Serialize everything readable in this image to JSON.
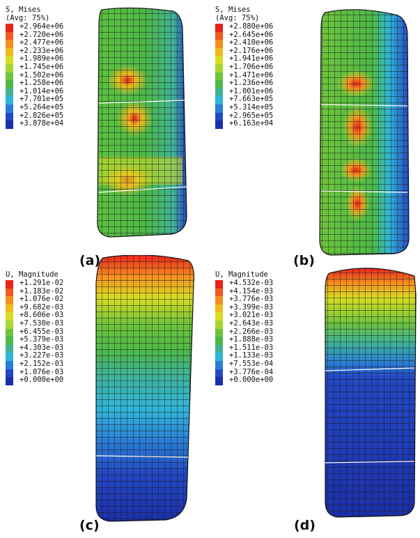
{
  "panels": [
    {
      "label": "(a)",
      "legend": {
        "title": "S, Mises",
        "subtitle": "(Avg: 75%)",
        "values": [
          "+2.964e+06",
          "+2.720e+06",
          "+2.477e+06",
          "+2.233e+06",
          "+1.989e+06",
          "+1.745e+06",
          "+1.502e+06",
          "+1.258e+06",
          "+1.014e+06",
          "+7.701e+05",
          "+5.264e+05",
          "+2.826e+05",
          "+3.878e+04"
        ]
      }
    },
    {
      "label": "(b)",
      "legend": {
        "title": "S, Mises",
        "subtitle": "(Avg: 75%)",
        "values": [
          "+2.880e+06",
          "+2.645e+06",
          "+2.410e+06",
          "+2.176e+06",
          "+1.941e+06",
          "+1.706e+06",
          "+1.471e+06",
          "+1.236e+06",
          "+1.001e+06",
          "+7.663e+05",
          "+5.314e+05",
          "+2.965e+05",
          "+6.163e+04"
        ]
      }
    },
    {
      "label": "(c)",
      "legend": {
        "title": "U, Magnitude",
        "subtitle": "",
        "values": [
          "+1.291e-02",
          "+1.183e-02",
          "+1.076e-02",
          "+9.682e-03",
          "+8.606e-03",
          "+7.530e-03",
          "+6.455e-03",
          "+5.379e-03",
          "+4.303e-03",
          "+3.227e-03",
          "+2.152e-03",
          "+1.076e-03",
          "+0.000e+00"
        ]
      }
    },
    {
      "label": "(d)",
      "legend": {
        "title": "U, Magnitude",
        "subtitle": "",
        "values": [
          "+4.532e-03",
          "+4.154e-03",
          "+3.776e-03",
          "+3.399e-03",
          "+3.021e-03",
          "+2.643e-03",
          "+2.266e-03",
          "+1.888e-03",
          "+1.511e-03",
          "+1.133e-03",
          "+7.553e-04",
          "+3.776e-04",
          "+0.000e+00"
        ]
      }
    }
  ],
  "colormap": [
    "#e8221c",
    "#f05a1e",
    "#f78f1f",
    "#eeba1e",
    "#d8dc22",
    "#a7d531",
    "#6ec43b",
    "#4cb848",
    "#3fb298",
    "#30b5d8",
    "#2a7ed6",
    "#2448c4",
    "#1b2fa8"
  ]
}
